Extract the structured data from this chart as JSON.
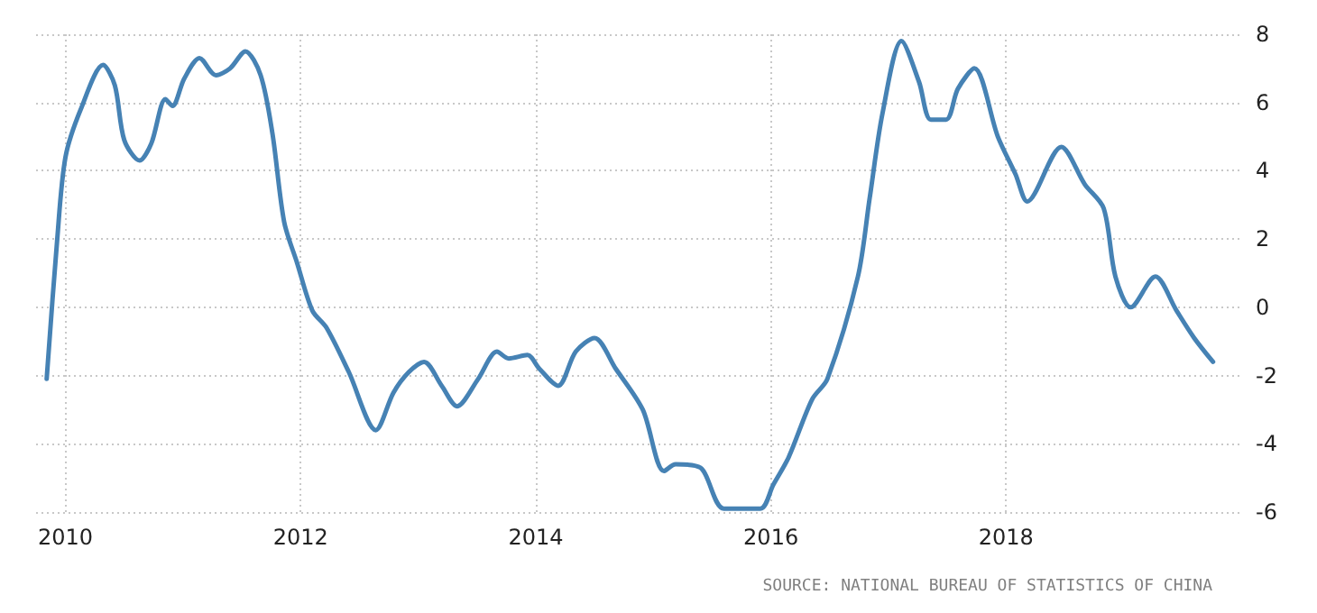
{
  "chart_data": {
    "type": "line",
    "x": [
      2009.84,
      2009.93,
      2010.0,
      2010.13,
      2010.32,
      2010.42,
      2010.5,
      2010.63,
      2010.73,
      2010.85,
      2010.91,
      2011.01,
      2011.14,
      2011.28,
      2011.4,
      2011.53,
      2011.66,
      2011.76,
      2011.86,
      2011.97,
      2012.1,
      2012.22,
      2012.41,
      2012.64,
      2012.79,
      2012.92,
      2013.05,
      2013.2,
      2013.33,
      2013.51,
      2013.67,
      2013.77,
      2013.93,
      2014.03,
      2014.19,
      2014.34,
      2014.5,
      2014.68,
      2014.91,
      2015.09,
      2015.19,
      2015.4,
      2015.6,
      2015.91,
      2016.02,
      2016.15,
      2016.35,
      2016.48,
      2016.74,
      2016.84,
      2016.95,
      2017.11,
      2017.26,
      2017.36,
      2017.49,
      2017.59,
      2017.73,
      2017.93,
      2018.08,
      2018.18,
      2018.47,
      2018.67,
      2018.83,
      2018.93,
      2019.06,
      2019.27,
      2019.45,
      2019.6,
      2019.76
    ],
    "series": [
      {
        "color": "#4682b4",
        "values": [
          -2.1,
          2.0,
          4.4,
          5.8,
          7.1,
          6.5,
          4.9,
          4.3,
          4.8,
          6.1,
          5.9,
          6.7,
          7.3,
          6.8,
          7.0,
          7.5,
          6.8,
          5.1,
          2.5,
          1.3,
          -0.1,
          -0.6,
          -1.9,
          -3.6,
          -2.5,
          -1.9,
          -1.6,
          -2.3,
          -2.9,
          -2.1,
          -1.3,
          -1.5,
          -1.4,
          -1.8,
          -2.3,
          -1.3,
          -0.9,
          -1.8,
          -3.0,
          -4.8,
          -4.6,
          -4.7,
          -5.9,
          -5.9,
          -5.2,
          -4.4,
          -2.7,
          -2.1,
          0.9,
          3.2,
          5.7,
          7.8,
          6.6,
          5.5,
          5.5,
          6.4,
          7.0,
          5.0,
          3.9,
          3.1,
          4.7,
          3.6,
          2.9,
          0.9,
          0.0,
          0.9,
          -0.1,
          -0.9,
          -1.6
        ]
      }
    ],
    "xlim": [
      2009.75,
      2020.0
    ],
    "xticks": [
      2010,
      2012,
      2014,
      2016,
      2018
    ],
    "ylim": [
      -6,
      8
    ],
    "yticks": [
      -6,
      -4,
      -2,
      0,
      2,
      4,
      6,
      8
    ],
    "grid": true,
    "marker": "none",
    "line_style": "solid",
    "annotations": [
      "SOURCE: NATIONAL BUREAU OF STATISTICS OF CHINA"
    ]
  }
}
